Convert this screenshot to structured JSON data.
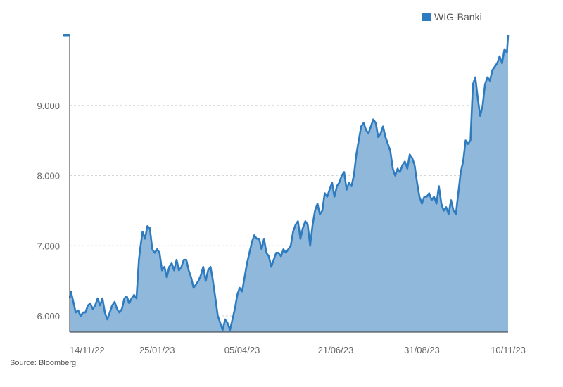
{
  "chart_data": {
    "type": "area",
    "series": [
      {
        "name": "WIG-Banki",
        "color": "#2e7bbf",
        "fill": "#8fb8db",
        "dates": [
          "2022-11-14",
          "2022-11-15",
          "2022-11-17",
          "2022-11-19",
          "2022-11-21",
          "2022-11-23",
          "2022-11-25",
          "2022-11-27",
          "2022-11-29",
          "2022-12-01",
          "2022-12-03",
          "2022-12-05",
          "2022-12-07",
          "2022-12-09",
          "2022-12-11",
          "2022-12-13",
          "2022-12-15",
          "2022-12-17",
          "2022-12-19",
          "2022-12-21",
          "2022-12-23",
          "2022-12-25",
          "2022-12-27",
          "2022-12-29",
          "2022-12-31",
          "2023-01-02",
          "2023-01-04",
          "2023-01-06",
          "2023-01-08",
          "2023-01-10",
          "2023-01-11",
          "2023-01-13",
          "2023-01-15",
          "2023-01-17",
          "2023-01-19",
          "2023-01-21",
          "2023-01-23",
          "2023-01-25",
          "2023-01-27",
          "2023-01-29",
          "2023-01-31",
          "2023-02-02",
          "2023-02-04",
          "2023-02-06",
          "2023-02-08",
          "2023-02-10",
          "2023-02-12",
          "2023-02-14",
          "2023-02-16",
          "2023-02-18",
          "2023-02-20",
          "2023-02-22",
          "2023-02-24",
          "2023-02-26",
          "2023-02-28",
          "2023-03-02",
          "2023-03-04",
          "2023-03-06",
          "2023-03-08",
          "2023-03-10",
          "2023-03-12",
          "2023-03-14",
          "2023-03-16",
          "2023-03-18",
          "2023-03-20",
          "2023-03-22",
          "2023-03-24",
          "2023-03-26",
          "2023-03-28",
          "2023-03-30",
          "2023-04-01",
          "2023-04-03",
          "2023-04-05",
          "2023-04-07",
          "2023-04-09",
          "2023-04-11",
          "2023-04-13",
          "2023-04-15",
          "2023-04-17",
          "2023-04-19",
          "2023-04-21",
          "2023-04-23",
          "2023-04-25",
          "2023-04-27",
          "2023-04-29",
          "2023-05-01",
          "2023-05-03",
          "2023-05-05",
          "2023-05-07",
          "2023-05-09",
          "2023-05-11",
          "2023-05-13",
          "2023-05-15",
          "2023-05-17",
          "2023-05-19",
          "2023-05-21",
          "2023-05-23",
          "2023-05-25",
          "2023-05-27",
          "2023-05-29",
          "2023-05-31",
          "2023-06-02",
          "2023-06-04",
          "2023-06-06",
          "2023-06-08",
          "2023-06-10",
          "2023-06-12",
          "2023-06-14",
          "2023-06-16",
          "2023-06-18",
          "2023-06-20",
          "2023-06-22",
          "2023-06-24",
          "2023-06-26",
          "2023-06-28",
          "2023-06-30",
          "2023-07-02",
          "2023-07-04",
          "2023-07-06",
          "2023-07-08",
          "2023-07-10",
          "2023-07-12",
          "2023-07-14",
          "2023-07-16",
          "2023-07-18",
          "2023-07-20",
          "2023-07-22",
          "2023-07-24",
          "2023-07-26",
          "2023-07-28",
          "2023-07-30",
          "2023-08-01",
          "2023-08-03",
          "2023-08-05",
          "2023-08-07",
          "2023-08-09",
          "2023-08-11",
          "2023-08-13",
          "2023-08-15",
          "2023-08-17",
          "2023-08-19",
          "2023-08-21",
          "2023-08-23",
          "2023-08-25",
          "2023-08-27",
          "2023-08-29",
          "2023-08-31",
          "2023-09-02",
          "2023-09-04",
          "2023-09-06",
          "2023-09-08",
          "2023-09-10",
          "2023-09-12",
          "2023-09-14",
          "2023-09-16",
          "2023-09-18",
          "2023-09-20",
          "2023-09-22",
          "2023-09-24",
          "2023-09-26",
          "2023-09-28",
          "2023-09-30",
          "2023-10-02",
          "2023-10-04",
          "2023-10-06",
          "2023-10-08",
          "2023-10-10",
          "2023-10-12",
          "2023-10-14",
          "2023-10-16",
          "2023-10-18",
          "2023-10-20",
          "2023-10-22",
          "2023-10-24",
          "2023-10-26",
          "2023-10-28",
          "2023-10-30",
          "2023-11-01",
          "2023-11-03",
          "2023-11-05",
          "2023-11-07",
          "2023-11-09",
          "2023-11-10"
        ],
        "values": [
          6250,
          6350,
          6200,
          6050,
          6080,
          6000,
          6050,
          6050,
          6150,
          6180,
          6100,
          6150,
          6250,
          6150,
          6250,
          6050,
          5950,
          6050,
          6150,
          6200,
          6100,
          6050,
          6100,
          6250,
          6280,
          6180,
          6250,
          6300,
          6250,
          6800,
          6950,
          7200,
          7100,
          7280,
          7250,
          6950,
          6900,
          6950,
          6900,
          6650,
          6700,
          6550,
          6700,
          6750,
          6650,
          6800,
          6650,
          6700,
          6800,
          6800,
          6650,
          6550,
          6400,
          6450,
          6500,
          6580,
          6700,
          6500,
          6650,
          6700,
          6500,
          6250,
          6000,
          5900,
          5800,
          5950,
          5900,
          5800,
          5950,
          6100,
          6300,
          6400,
          6350,
          6550,
          6750,
          6900,
          7050,
          7150,
          7100,
          7100,
          6950,
          7100,
          6900,
          6850,
          6700,
          6800,
          6900,
          6900,
          6850,
          6950,
          6900,
          6950,
          7000,
          7200,
          7300,
          7350,
          7100,
          7250,
          7350,
          7300,
          7000,
          7300,
          7500,
          7600,
          7450,
          7500,
          7750,
          7700,
          7800,
          7900,
          7700,
          7850,
          7900,
          8000,
          8050,
          7800,
          7900,
          7850,
          8000,
          8300,
          8500,
          8700,
          8750,
          8650,
          8600,
          8700,
          8800,
          8750,
          8550,
          8600,
          8700,
          8550,
          8450,
          8350,
          8100,
          8000,
          8100,
          8050,
          8150,
          8200,
          8100,
          8300,
          8250,
          8150,
          7900,
          7700,
          7600,
          7700,
          7700,
          7750,
          7650,
          7700,
          7600,
          7850,
          7600,
          7500,
          7550,
          7450,
          7650,
          7500,
          7450,
          7750,
          8050,
          8200,
          8500,
          8450,
          8500,
          9300,
          9400,
          9100,
          8850,
          9000,
          9300,
          9400,
          9350,
          9500,
          9550,
          9600,
          9700,
          9600,
          9800,
          9750,
          10000
        ]
      }
    ],
    "x_ticks": [
      "14/11/22",
      "25/01/23",
      "05/04/23",
      "21/06/23",
      "31/08/23",
      "10/11/23"
    ],
    "x_tick_dates": [
      "2022-11-14",
      "2023-01-25",
      "2023-04-05",
      "2023-06-21",
      "2023-08-31",
      "2023-11-10"
    ],
    "y_ticks": [
      6000,
      7000,
      8000,
      9000
    ],
    "y_tick_labels": [
      "6.000",
      "7.000",
      "8.000",
      "9.000"
    ],
    "ylim": [
      5770,
      10000
    ],
    "grid": "horizontal-dashed",
    "legend_position": "top-right",
    "source": "Source: Bloomberg"
  }
}
